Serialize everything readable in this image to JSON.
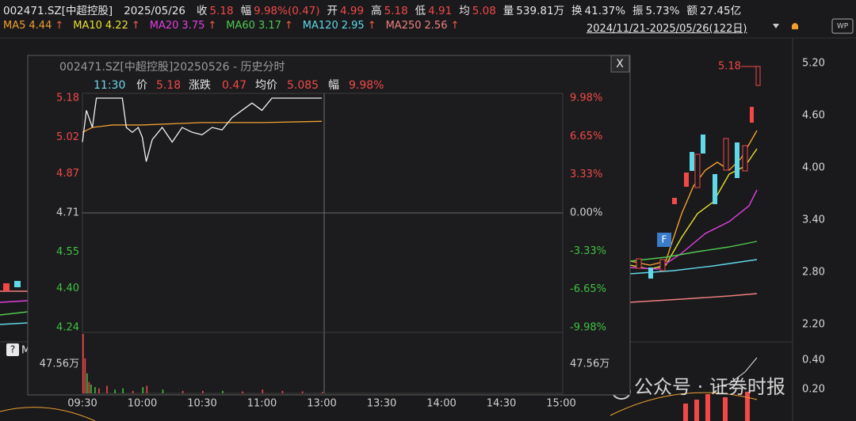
{
  "header": {
    "code": "002471.SZ[中超控股]",
    "date": "2025/05/26",
    "stats": [
      {
        "label": "收",
        "value": "5.18",
        "color": "#f24848"
      },
      {
        "label": "幅",
        "value": "9.98%(0.47)",
        "color": "#f24848"
      },
      {
        "label": "开",
        "value": "4.99",
        "color": "#f24848"
      },
      {
        "label": "高",
        "value": "5.18",
        "color": "#f24848"
      },
      {
        "label": "低",
        "value": "4.91",
        "color": "#f24848"
      },
      {
        "label": "均",
        "value": "5.08",
        "color": "#f24848"
      },
      {
        "label": "量",
        "value": "539.81万",
        "color": "#e8e8e8"
      },
      {
        "label": "换",
        "value": "41.37%",
        "color": "#e8e8e8"
      },
      {
        "label": "振",
        "value": "5.73%",
        "color": "#e8e8e8"
      },
      {
        "label": "额",
        "value": "27.45亿",
        "color": "#e8e8e8"
      }
    ],
    "icon": "WP"
  },
  "ma_row": {
    "items": [
      {
        "label": "MA5",
        "value": "4.44",
        "arrow": "↑",
        "color": "#f0a030"
      },
      {
        "label": "MA10",
        "value": "4.22",
        "arrow": "↑",
        "color": "#e8e030"
      },
      {
        "label": "MA20",
        "value": "3.75",
        "arrow": "↑",
        "color": "#e040e0"
      },
      {
        "label": "MA60",
        "value": "3.17",
        "arrow": "↑",
        "color": "#50c850"
      },
      {
        "label": "MA120",
        "value": "2.95",
        "arrow": "↑",
        "color": "#60d8e8"
      },
      {
        "label": "MA250",
        "value": "2.56",
        "arrow": "↑",
        "color": "#f08080"
      }
    ],
    "range": "2024/11/21-2025/05/26(122日)"
  },
  "main_axis": [
    "5.20",
    "4.60",
    "4.00",
    "3.40",
    "2.80",
    "2.20",
    "0.40",
    "0.20"
  ],
  "price_marker": "5.18",
  "badge": "F",
  "help": "?",
  "side_label": "M",
  "watermark": "公众号 · 证券时报",
  "popup": {
    "title": "002471.SZ[中超控股]20250526 - 历史分时",
    "close": "X",
    "info": {
      "time": "11:30",
      "price_label": "价",
      "price": "5.18",
      "change_label": "涨跌",
      "change": "0.47",
      "avg_label": "均价",
      "avg": "5.085",
      "pct_label": "幅",
      "pct": "9.98%"
    },
    "intraday": {
      "xlim": [
        0,
        240
      ],
      "ylim": [
        4.24,
        5.18
      ],
      "pct_lim": [
        -9.98,
        9.98
      ],
      "xticks": [
        {
          "value": 0,
          "label": "09:30"
        },
        {
          "value": 30,
          "label": "10:00"
        },
        {
          "value": 60,
          "label": "10:30"
        },
        {
          "value": 90,
          "label": "11:00"
        },
        {
          "value": 120,
          "label": "13:00"
        },
        {
          "value": 150,
          "label": "13:30"
        },
        {
          "value": 180,
          "label": "14:00"
        },
        {
          "value": 210,
          "label": "14:30"
        },
        {
          "value": 240,
          "label": "15:00"
        }
      ],
      "yticks": [
        {
          "value": 5.18,
          "label": "5.18"
        },
        {
          "value": 5.02,
          "label": "5.02"
        },
        {
          "value": 4.87,
          "label": "4.87"
        },
        {
          "value": 4.71,
          "label": "4.71"
        },
        {
          "value": 4.55,
          "label": "4.55"
        },
        {
          "value": 4.4,
          "label": "4.40"
        },
        {
          "value": 4.24,
          "label": "4.24"
        }
      ],
      "pct_ticks": [
        {
          "value": 9.98,
          "label": "9.98%"
        },
        {
          "value": 6.65,
          "label": "6.65%"
        },
        {
          "value": 3.33,
          "label": "3.33%"
        },
        {
          "value": 0,
          "label": "0.00%"
        },
        {
          "value": -3.33,
          "label": "-3.33%"
        },
        {
          "value": -6.65,
          "label": "-6.65%"
        },
        {
          "value": -9.98,
          "label": "-9.98%"
        }
      ],
      "price": {
        "minutes": [
          0,
          2,
          5,
          7,
          10,
          20,
          22,
          25,
          28,
          30,
          32,
          35,
          40,
          45,
          50,
          55,
          60,
          65,
          70,
          75,
          80,
          85,
          90,
          95,
          100,
          120
        ],
        "values": [
          5.0,
          5.13,
          5.06,
          5.18,
          5.18,
          5.18,
          5.06,
          5.04,
          5.06,
          5.02,
          4.92,
          5.01,
          5.06,
          5.0,
          5.06,
          5.04,
          5.03,
          5.06,
          5.05,
          5.1,
          5.13,
          5.16,
          5.13,
          5.18,
          5.18,
          5.18
        ],
        "color": "#f0f0f0"
      },
      "average": {
        "minutes": [
          0,
          5,
          15,
          30,
          60,
          90,
          120
        ],
        "values": [
          5.04,
          5.06,
          5.07,
          5.07,
          5.08,
          5.08,
          5.085
        ],
        "color": "#f0a030"
      },
      "volume": {
        "ylim": [
          0,
          47.56
        ],
        "label": "47.56万",
        "minutes": [
          0,
          1,
          2,
          3,
          4,
          6,
          8,
          12,
          16,
          20,
          25,
          30,
          32,
          40,
          50,
          60,
          70,
          80,
          90,
          100,
          110,
          120
        ],
        "values": [
          47.56,
          28,
          16,
          9,
          7,
          5,
          4,
          6,
          3,
          4,
          2,
          5,
          6,
          3,
          2,
          2,
          2,
          1.5,
          3,
          2,
          1.5,
          1
        ],
        "colors": [
          "#f24848",
          "#f24848",
          "#40c040",
          "#f24848",
          "#40c040",
          "#40c040",
          "#f24848",
          "#f24848",
          "#40c040",
          "#40c040",
          "#f24848",
          "#40c040",
          "#f24848",
          "#40c040",
          "#f24848",
          "#f24848",
          "#40c040",
          "#f24848",
          "#f24848",
          "#f24848",
          "#f24848",
          "#f24848"
        ]
      }
    }
  }
}
